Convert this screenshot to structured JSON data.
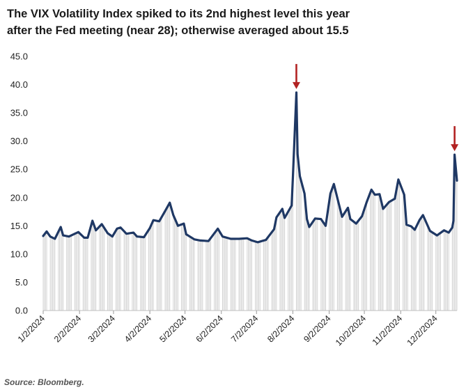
{
  "title": {
    "line1": "The VIX Volatility Index spiked to its 2nd highest level this year",
    "line2": "after the Fed meeting (near 28); otherwise averaged about 15.5"
  },
  "source": "Source: Bloomberg.",
  "colors": {
    "line": "#1f3864",
    "bars": "#cfcfcf",
    "arrow": "#b22222"
  },
  "chart_data": {
    "type": "line",
    "title": "The VIX Volatility Index spiked to its 2nd highest level this year after the Fed meeting (near 28); otherwise averaged about 15.5",
    "xlabel": "",
    "ylabel": "",
    "ylim": [
      0,
      45
    ],
    "yticks": [
      "0.0",
      "5.0",
      "10.0",
      "15.0",
      "20.0",
      "25.0",
      "30.0",
      "35.0",
      "40.0",
      "45.0"
    ],
    "xticks": [
      "1/2/2024",
      "2/2/2024",
      "3/2/2024",
      "4/2/2024",
      "5/2/2024",
      "6/2/2024",
      "7/2/2024",
      "8/2/2024",
      "9/2/2024",
      "10/2/2024",
      "11/2/2024",
      "12/2/2024"
    ],
    "xlim": [
      "2024-01-02",
      "2024-12-20"
    ],
    "grid": false,
    "legend": "none",
    "annotations": [
      {
        "type": "arrow",
        "date": "2024-08-05",
        "value": 38.6
      },
      {
        "type": "arrow",
        "date": "2024-12-18",
        "value": 27.6
      }
    ],
    "series": [
      {
        "points": [
          [
            "2024-01-02",
            13.2
          ],
          [
            "2024-01-05",
            14.0
          ],
          [
            "2024-01-08",
            13.1
          ],
          [
            "2024-01-12",
            12.7
          ],
          [
            "2024-01-17",
            14.8
          ],
          [
            "2024-01-19",
            13.3
          ],
          [
            "2024-01-24",
            13.1
          ],
          [
            "2024-01-29",
            13.6
          ],
          [
            "2024-02-01",
            13.9
          ],
          [
            "2024-02-06",
            12.9
          ],
          [
            "2024-02-09",
            12.9
          ],
          [
            "2024-02-13",
            15.9
          ],
          [
            "2024-02-16",
            14.2
          ],
          [
            "2024-02-21",
            15.3
          ],
          [
            "2024-02-26",
            13.7
          ],
          [
            "2024-03-01",
            13.1
          ],
          [
            "2024-03-05",
            14.5
          ],
          [
            "2024-03-08",
            14.7
          ],
          [
            "2024-03-13",
            13.6
          ],
          [
            "2024-03-19",
            13.8
          ],
          [
            "2024-03-22",
            13.1
          ],
          [
            "2024-03-28",
            13.0
          ],
          [
            "2024-04-02",
            14.6
          ],
          [
            "2024-04-05",
            16.0
          ],
          [
            "2024-04-10",
            15.8
          ],
          [
            "2024-04-15",
            17.6
          ],
          [
            "2024-04-19",
            19.1
          ],
          [
            "2024-04-22",
            16.9
          ],
          [
            "2024-04-26",
            15.0
          ],
          [
            "2024-05-01",
            15.4
          ],
          [
            "2024-05-03",
            13.5
          ],
          [
            "2024-05-10",
            12.6
          ],
          [
            "2024-05-15",
            12.4
          ],
          [
            "2024-05-22",
            12.3
          ],
          [
            "2024-05-30",
            14.5
          ],
          [
            "2024-06-03",
            13.1
          ],
          [
            "2024-06-10",
            12.7
          ],
          [
            "2024-06-17",
            12.7
          ],
          [
            "2024-06-24",
            12.8
          ],
          [
            "2024-06-28",
            12.4
          ],
          [
            "2024-07-03",
            12.1
          ],
          [
            "2024-07-10",
            12.5
          ],
          [
            "2024-07-17",
            14.4
          ],
          [
            "2024-07-19",
            16.5
          ],
          [
            "2024-07-24",
            18.0
          ],
          [
            "2024-07-26",
            16.4
          ],
          [
            "2024-08-01",
            18.6
          ],
          [
            "2024-08-02",
            23.4
          ],
          [
            "2024-08-05",
            38.6
          ],
          [
            "2024-08-06",
            27.7
          ],
          [
            "2024-08-08",
            23.8
          ],
          [
            "2024-08-12",
            20.7
          ],
          [
            "2024-08-14",
            16.2
          ],
          [
            "2024-08-16",
            14.8
          ],
          [
            "2024-08-21",
            16.3
          ],
          [
            "2024-08-26",
            16.2
          ],
          [
            "2024-08-30",
            15.0
          ],
          [
            "2024-09-03",
            20.7
          ],
          [
            "2024-09-06",
            22.4
          ],
          [
            "2024-09-10",
            19.1
          ],
          [
            "2024-09-13",
            16.6
          ],
          [
            "2024-09-18",
            18.2
          ],
          [
            "2024-09-20",
            16.2
          ],
          [
            "2024-09-25",
            15.4
          ],
          [
            "2024-09-30",
            16.7
          ],
          [
            "2024-10-04",
            19.2
          ],
          [
            "2024-10-08",
            21.4
          ],
          [
            "2024-10-11",
            20.5
          ],
          [
            "2024-10-15",
            20.6
          ],
          [
            "2024-10-18",
            18.0
          ],
          [
            "2024-10-23",
            19.2
          ],
          [
            "2024-10-28",
            19.8
          ],
          [
            "2024-10-31",
            23.2
          ],
          [
            "2024-11-05",
            20.5
          ],
          [
            "2024-11-07",
            15.2
          ],
          [
            "2024-11-11",
            14.9
          ],
          [
            "2024-11-14",
            14.3
          ],
          [
            "2024-11-18",
            16.0
          ],
          [
            "2024-11-21",
            16.9
          ],
          [
            "2024-11-27",
            14.1
          ],
          [
            "2024-12-03",
            13.3
          ],
          [
            "2024-12-09",
            14.2
          ],
          [
            "2024-12-13",
            13.8
          ],
          [
            "2024-12-16",
            14.7
          ],
          [
            "2024-12-17",
            15.9
          ],
          [
            "2024-12-18",
            27.6
          ],
          [
            "2024-12-20",
            23.0
          ]
        ]
      }
    ]
  }
}
